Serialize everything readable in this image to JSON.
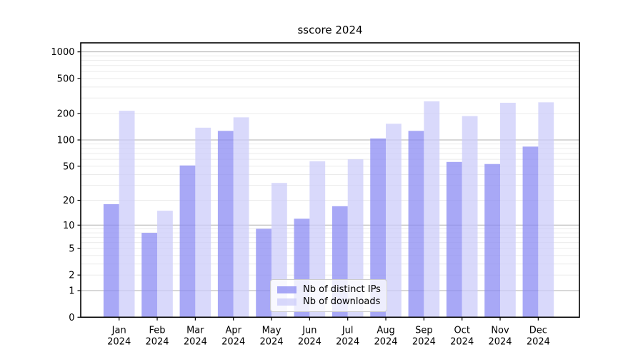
{
  "chart_data": {
    "type": "bar",
    "title": "sscore 2024",
    "yscale": "symlog-log1p",
    "categories": [
      "Jan",
      "Feb",
      "Mar",
      "Apr",
      "May",
      "Jun",
      "Jul",
      "Aug",
      "Sep",
      "Oct",
      "Nov",
      "Dec"
    ],
    "category_year": "2024",
    "series": [
      {
        "name": "Nb of distinct IPs",
        "key": "distinct-ips",
        "color": "#8b8bf3",
        "opacity": 0.75,
        "values": [
          18,
          8,
          51,
          127,
          9,
          12,
          17,
          104,
          127,
          56,
          53,
          84
        ]
      },
      {
        "name": "Nb of downloads",
        "key": "downloads",
        "color": "#ccccf9",
        "opacity": 0.75,
        "values": [
          215,
          15,
          138,
          181,
          32,
          57,
          60,
          153,
          275,
          187,
          265,
          268
        ]
      }
    ],
    "yticks": [
      0,
      1,
      2,
      5,
      10,
      20,
      50,
      100,
      200,
      500,
      1000
    ],
    "ytick_labels": [
      "0",
      "1",
      "2",
      "5",
      "10",
      "20",
      "50",
      "100",
      "200",
      "500",
      "1000"
    ],
    "ylim": [
      0,
      1265
    ],
    "grid": {
      "on": true,
      "major_color": "#b0b0b0",
      "minor_color": "#ebebeb"
    },
    "legend_position": "lower center",
    "axis_color": "#000000",
    "background": "#ffffff"
  }
}
